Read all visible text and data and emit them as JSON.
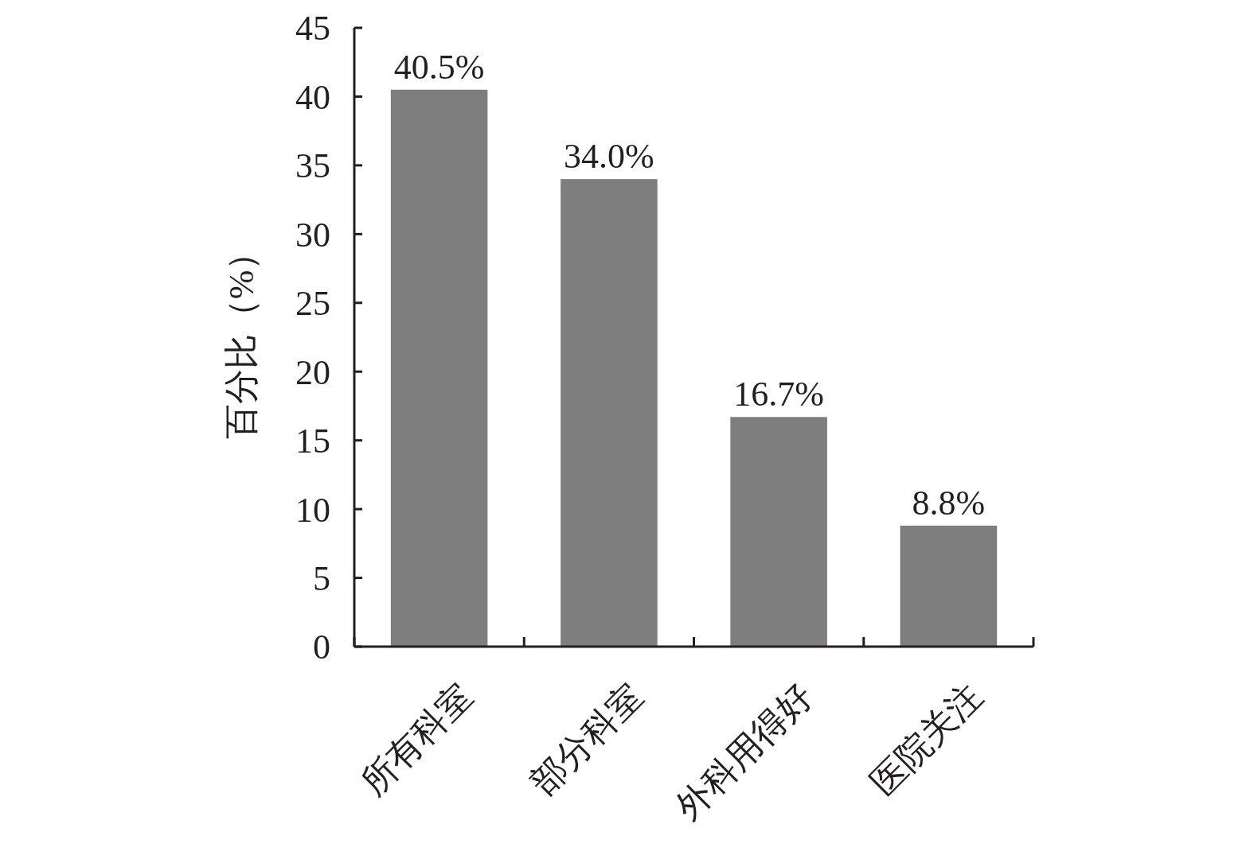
{
  "chart_data": {
    "type": "bar",
    "ylabel": "百分比（%）",
    "categories": [
      "所有科室",
      "部分科室",
      "外科用得好",
      "医院关注"
    ],
    "values": [
      40.5,
      34.0,
      16.7,
      8.8
    ],
    "value_labels": [
      "40.5%",
      "34.0%",
      "16.7%",
      "8.8%"
    ],
    "color": "#7f7e7f",
    "ylim": [
      0,
      45
    ],
    "yticks": [
      0,
      5,
      10,
      15,
      20,
      25,
      30,
      35,
      40,
      45
    ],
    "grid": false
  }
}
